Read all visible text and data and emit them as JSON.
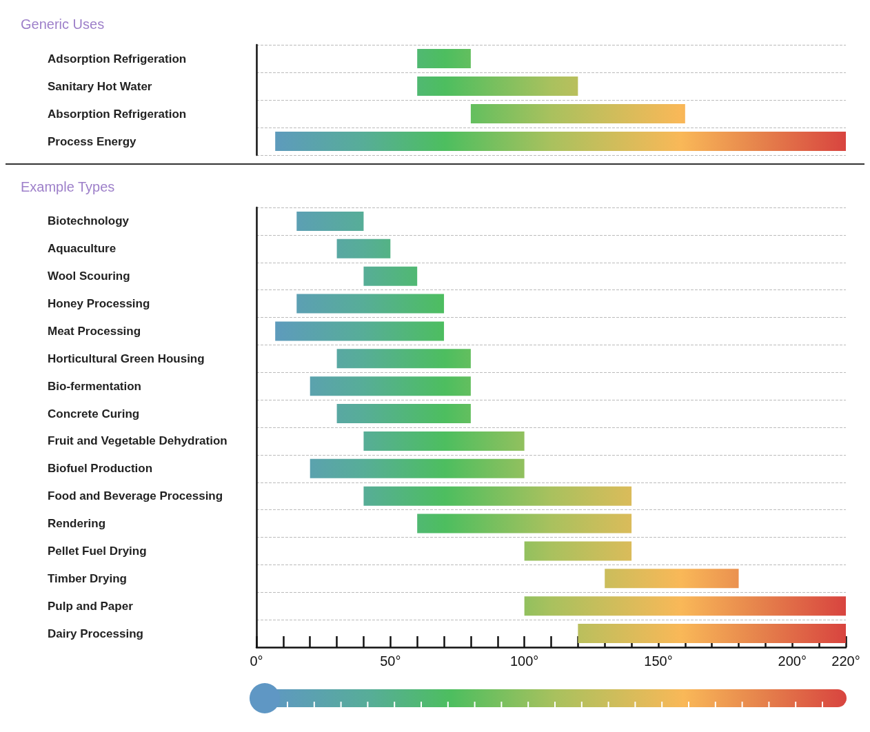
{
  "chart_data": [
    {
      "type": "bar",
      "orientation": "horizontal",
      "title": "Generic Uses",
      "categories": [
        "Adsorption Refrigeration",
        "Sanitary Hot Water",
        "Absorption Refrigeration",
        "Process Energy"
      ],
      "base": [
        60,
        60,
        80,
        7
      ],
      "values": [
        20,
        60,
        80,
        213
      ],
      "xlim": [
        0,
        220
      ],
      "tick_labels": "y",
      "grid": "y"
    },
    {
      "type": "bar",
      "orientation": "horizontal",
      "title": "Example Types",
      "categories": [
        "Biotechnology",
        "Aquaculture",
        "Wool Scouring",
        "Honey Processing",
        "Meat Processing",
        "Horticultural Green Housing",
        "Bio-fermentation",
        "Concrete Curing",
        "Fruit and Vegetable Dehydration",
        "Biofuel Production",
        "Food and Beverage Processing",
        "Rendering",
        "Pellet Fuel Drying",
        "Timber Drying",
        "Pulp and Paper",
        "Dairy Processing"
      ],
      "base": [
        15,
        30,
        40,
        15,
        7,
        30,
        20,
        30,
        40,
        20,
        40,
        60,
        100,
        130,
        100,
        120
      ],
      "values": [
        25,
        20,
        20,
        55,
        63,
        50,
        60,
        50,
        60,
        80,
        100,
        80,
        40,
        50,
        120,
        100
      ],
      "xlim": [
        0,
        220
      ],
      "xticks": [
        {
          "value": 0,
          "label": "0°"
        },
        {
          "value": 10,
          "label": null
        },
        {
          "value": 20,
          "label": null
        },
        {
          "value": 30,
          "label": null
        },
        {
          "value": 40,
          "label": null
        },
        {
          "value": 50,
          "label": "50°"
        },
        {
          "value": 60,
          "label": null
        },
        {
          "value": 70,
          "label": null
        },
        {
          "value": 80,
          "label": null
        },
        {
          "value": 90,
          "label": null
        },
        {
          "value": 100,
          "label": "100°"
        },
        {
          "value": 110,
          "label": null
        },
        {
          "value": 120,
          "label": null
        },
        {
          "value": 130,
          "label": null
        },
        {
          "value": 140,
          "label": null
        },
        {
          "value": 150,
          "label": "150°"
        },
        {
          "value": 160,
          "label": null
        },
        {
          "value": 170,
          "label": null
        },
        {
          "value": 180,
          "label": null
        },
        {
          "value": 190,
          "label": null
        },
        {
          "value": 200,
          "label": "200°"
        },
        {
          "value": 210,
          "label": null
        },
        {
          "value": 220,
          "label": "220°"
        }
      ],
      "grid": "y"
    }
  ]
}
